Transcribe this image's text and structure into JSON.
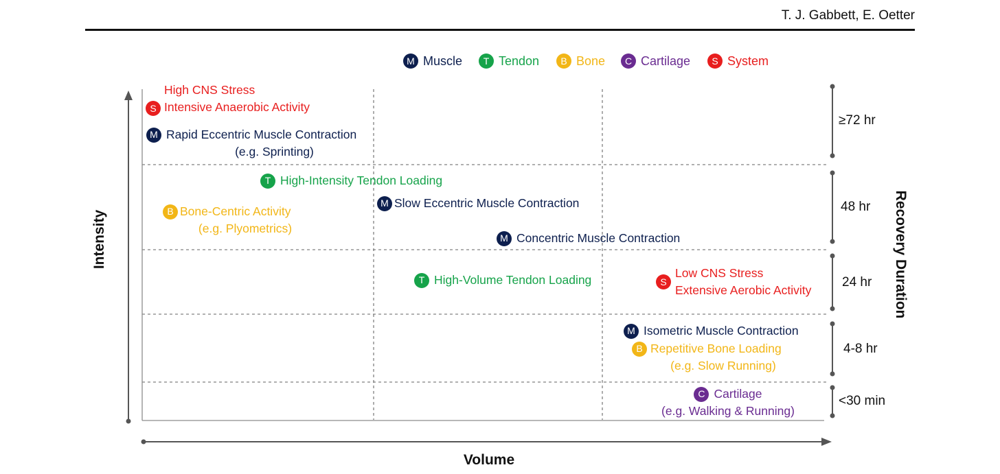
{
  "author": "T. J. Gabbett, E. Oetter",
  "colors": {
    "muscle": "#0d1f4e",
    "tendon": "#16a34a",
    "bone": "#f2b617",
    "cartilage": "#6a2c91",
    "system": "#e81e1e",
    "axis": "#555555"
  },
  "legend": [
    {
      "letter": "M",
      "label": "Muscle",
      "color": "#0d1f4e"
    },
    {
      "letter": "T",
      "label": "Tendon",
      "color": "#16a34a"
    },
    {
      "letter": "B",
      "label": "Bone",
      "color": "#f2b617"
    },
    {
      "letter": "C",
      "label": "Cartilage",
      "color": "#6a2c91"
    },
    {
      "letter": "S",
      "label": "System",
      "color": "#e81e1e"
    }
  ],
  "axes": {
    "y_label": "Intensity",
    "x_label": "Volume",
    "right_label": "Recovery Duration"
  },
  "durations": [
    "≥72 hr",
    "48 hr",
    "24 hr",
    "4-8 hr",
    "<30 min"
  ],
  "items": [
    {
      "letter": "S",
      "type": "system",
      "line1": "High CNS Stress",
      "line2": "Intensive Anaerobic Activity"
    },
    {
      "letter": "M",
      "type": "muscle",
      "line1": "Rapid Eccentric Muscle Contraction",
      "line2": "(e.g. Sprinting)"
    },
    {
      "letter": "T",
      "type": "tendon",
      "line1": "High-Intensity Tendon Loading"
    },
    {
      "letter": "B",
      "type": "bone",
      "line1": "Bone-Centric Activity",
      "line2": "(e.g. Plyometrics)"
    },
    {
      "letter": "M",
      "type": "muscle",
      "line1": "Slow Eccentric Muscle Contraction"
    },
    {
      "letter": "M",
      "type": "muscle",
      "line1": "Concentric Muscle Contraction"
    },
    {
      "letter": "T",
      "type": "tendon",
      "line1": "High-Volume Tendon Loading"
    },
    {
      "letter": "S",
      "type": "system",
      "line1": "Low CNS Stress",
      "line2": "Extensive Aerobic Activity"
    },
    {
      "letter": "M",
      "type": "muscle",
      "line1": "Isometric Muscle Contraction"
    },
    {
      "letter": "B",
      "type": "bone",
      "line1": "Repetitive Bone Loading",
      "line2": "(e.g. Slow Running)"
    },
    {
      "letter": "C",
      "type": "cartilage",
      "line1": "Cartilage",
      "line2": "(e.g. Walking & Running)"
    }
  ]
}
